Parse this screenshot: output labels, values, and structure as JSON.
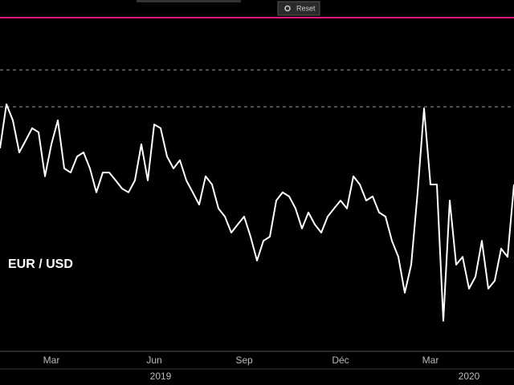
{
  "toolbar": {
    "reset": "Reset"
  },
  "chart_data": {
    "type": "line",
    "series": [
      {
        "name": "EUR / USD",
        "color": "#ffffff",
        "values": [
          1.1377,
          1.155,
          1.1487,
          1.1361,
          1.1408,
          1.1456,
          1.144,
          1.1267,
          1.1393,
          1.1487,
          1.1298,
          1.1282,
          1.1345,
          1.1361,
          1.1298,
          1.1204,
          1.1282,
          1.1282,
          1.1251,
          1.1219,
          1.1204,
          1.1251,
          1.1393,
          1.1251,
          1.1471,
          1.1456,
          1.1345,
          1.1298,
          1.133,
          1.1251,
          1.1204,
          1.1156,
          1.1267,
          1.1235,
          1.1141,
          1.1109,
          1.1046,
          1.1078,
          1.1109,
          1.103,
          1.0936,
          1.1014,
          1.103,
          1.1172,
          1.1204,
          1.1188,
          1.1141,
          1.1062,
          1.1125,
          1.1078,
          1.1046,
          1.1109,
          1.1141,
          1.1172,
          1.1141,
          1.1267,
          1.1235,
          1.1172,
          1.1188,
          1.1125,
          1.1109,
          1.1014,
          1.0951,
          1.081,
          1.092,
          1.1204,
          1.1534,
          1.1235,
          1.1235,
          1.07,
          1.1172,
          1.092,
          1.0951,
          1.0826,
          1.0873,
          1.1014,
          1.0826,
          1.0857,
          1.0983,
          1.0951,
          1.1235
        ]
      }
    ],
    "categories": [
      null,
      null,
      null,
      null,
      null,
      null,
      null,
      null,
      "Mar",
      null,
      null,
      null,
      null,
      null,
      null,
      null,
      null,
      null,
      null,
      null,
      null,
      null,
      null,
      null,
      "Jun",
      null,
      null,
      null,
      null,
      null,
      null,
      null,
      null,
      null,
      null,
      null,
      null,
      null,
      "Sep",
      null,
      null,
      null,
      null,
      null,
      null,
      null,
      null,
      null,
      null,
      null,
      null,
      null,
      null,
      "Déc",
      null,
      null,
      null,
      null,
      null,
      null,
      null,
      null,
      null,
      null,
      null,
      null,
      null,
      "Mar",
      null,
      null,
      null,
      null,
      null,
      null,
      null,
      null,
      null,
      null,
      null,
      null,
      null
    ],
    "years": [
      null,
      null,
      null,
      null,
      null,
      null,
      null,
      null,
      null,
      null,
      null,
      null,
      null,
      null,
      null,
      null,
      null,
      null,
      null,
      null,
      null,
      null,
      null,
      null,
      null,
      "2019",
      null,
      null,
      null,
      null,
      null,
      null,
      null,
      null,
      null,
      null,
      null,
      null,
      null,
      null,
      null,
      null,
      null,
      null,
      null,
      null,
      null,
      null,
      null,
      null,
      null,
      null,
      null,
      null,
      null,
      null,
      null,
      null,
      null,
      null,
      null,
      null,
      null,
      null,
      null,
      null,
      null,
      null,
      null,
      null,
      null,
      null,
      null,
      "2020",
      null,
      null,
      null,
      null,
      null,
      null,
      null
    ],
    "ylim": [
      1.058,
      1.189
    ],
    "grid_levels": [
      1.1685,
      1.154
    ]
  }
}
